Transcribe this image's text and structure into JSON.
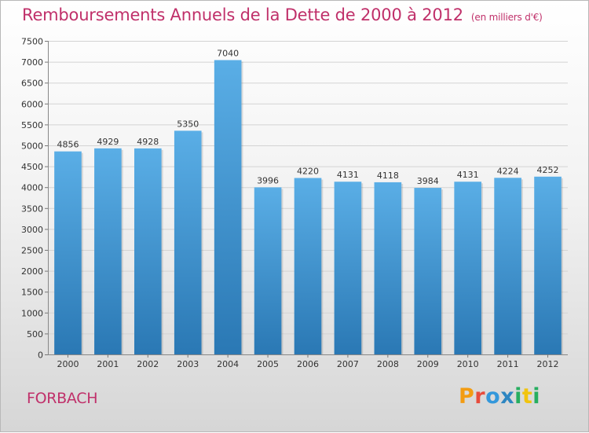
{
  "header": {
    "title": "Remboursements Annuels de la Dette de 2000 à 2012",
    "unit": "(en milliers d'€)"
  },
  "footer": {
    "city": "FORBACH",
    "logo": {
      "letters": [
        "P",
        "r",
        "o",
        "x",
        "i",
        "t",
        "i"
      ]
    }
  },
  "colors": {
    "title": "#c0306a",
    "bar_top": "#5aaee6",
    "bar_bottom": "#2a78b4",
    "logo": [
      "#f39c12",
      "#e74c3c",
      "#3498db",
      "#2e86c1",
      "#27ae60",
      "#f1c40f",
      "#27ae60"
    ]
  },
  "chart_data": {
    "type": "bar",
    "title": "Remboursements Annuels de la Dette de 2000 à 2012",
    "categories": [
      "2000",
      "2001",
      "2002",
      "2003",
      "2004",
      "2005",
      "2006",
      "2007",
      "2008",
      "2009",
      "2010",
      "2011",
      "2012"
    ],
    "values": [
      4856,
      4929,
      4928,
      5350,
      7040,
      3996,
      4220,
      4131,
      4118,
      3984,
      4131,
      4224,
      4252
    ],
    "data_labels": [
      "4856",
      "4929",
      "4928",
      "5350",
      "7040",
      "3996",
      "4220",
      "4131",
      "4118",
      "3984",
      "4131",
      "4224",
      "4252"
    ],
    "ylim": [
      0,
      7500
    ],
    "y_ticks": [
      "0",
      "500",
      "1000",
      "1500",
      "2000",
      "2500",
      "3000",
      "3500",
      "4000",
      "4500",
      "5000",
      "5500",
      "6000",
      "6500",
      "7000",
      "7500"
    ],
    "grid": true,
    "legend": "none"
  }
}
